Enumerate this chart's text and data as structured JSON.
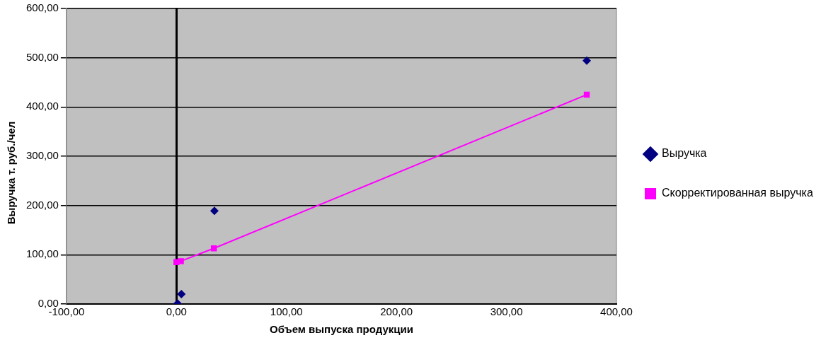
{
  "chart_data": {
    "type": "scatter",
    "xlabel": "Объем выпуска продукции",
    "ylabel": "Выручка т. руб./чел",
    "xlim": [
      -100,
      400
    ],
    "xticks": [
      {
        "value": -100,
        "label": "-100,00"
      },
      {
        "value": 0,
        "label": "0,00"
      },
      {
        "value": 100,
        "label": "100,00"
      },
      {
        "value": 200,
        "label": "200,00"
      },
      {
        "value": 300,
        "label": "300,00"
      },
      {
        "value": 400,
        "label": "400,00"
      }
    ],
    "ylim": [
      0,
      600
    ],
    "yticks": [
      {
        "value": 0,
        "label": "0,00"
      },
      {
        "value": 100,
        "label": "100,00"
      },
      {
        "value": 200,
        "label": "200,00"
      },
      {
        "value": 300,
        "label": "300,00"
      },
      {
        "value": 400,
        "label": "400,00"
      },
      {
        "value": 500,
        "label": "500,00"
      },
      {
        "value": 600,
        "label": "600,00"
      }
    ],
    "grid": "y",
    "legend": "right",
    "series": [
      {
        "name": "Выручка",
        "marker": "diamond",
        "color": "#000080",
        "x": [
          1,
          4.5,
          34.5,
          373
        ],
        "values": [
          1,
          20,
          189,
          494
        ]
      },
      {
        "name": "Скорректированная выручка",
        "type": "line",
        "marker": "square",
        "line_style": "solid",
        "color": "#ff00ff",
        "x": [
          0,
          4,
          34,
          373
        ],
        "values": [
          85,
          87,
          113,
          425
        ]
      }
    ]
  }
}
